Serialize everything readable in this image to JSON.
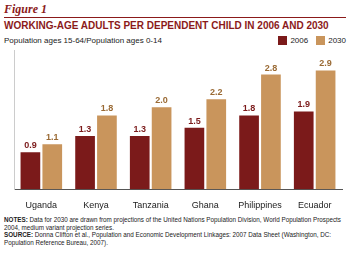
{
  "chart_data": {
    "type": "bar",
    "figure_label": "Figure 1",
    "title": "WORKING-AGE ADULTS PER DEPENDENT CHILD IN 2006 AND 2030",
    "subtitle": "Population ages 15-64/Population ages 0-14",
    "categories": [
      "Uganda",
      "Kenya",
      "Tanzania",
      "Ghana",
      "Philippines",
      "Ecuador"
    ],
    "series": [
      {
        "name": "2006",
        "color": "#7b1a1a",
        "values": [
          0.9,
          1.3,
          1.3,
          1.5,
          1.8,
          1.9
        ],
        "value_labels": [
          "0.9",
          "1.3",
          "1.3",
          "1.5",
          "1.8",
          "1.9"
        ]
      },
      {
        "name": "2030",
        "color": "#c9955c",
        "values": [
          1.1,
          1.8,
          2.0,
          2.2,
          2.8,
          2.9
        ],
        "value_labels": [
          "1.1",
          "1.8",
          "2.0",
          "2.2",
          "2.8",
          "2.9"
        ]
      }
    ],
    "ylim": [
      0,
      3.4
    ],
    "yticks": [],
    "grid": false,
    "legend": "top-right",
    "data_labels": true,
    "tick_labels": "x",
    "notes": [
      {
        "label": "NOTES:",
        "text": "Data for 2030 are drawn from projections of the United Nations Population Division, World Population Prospects 2004, medium variant projection series."
      },
      {
        "label": "SOURCE:",
        "text": "Donna Clifton et al., Population and Economic Development Linkages: 2007 Data Sheet (Washington, DC: Population Reference Bureau, 2007)."
      }
    ]
  }
}
